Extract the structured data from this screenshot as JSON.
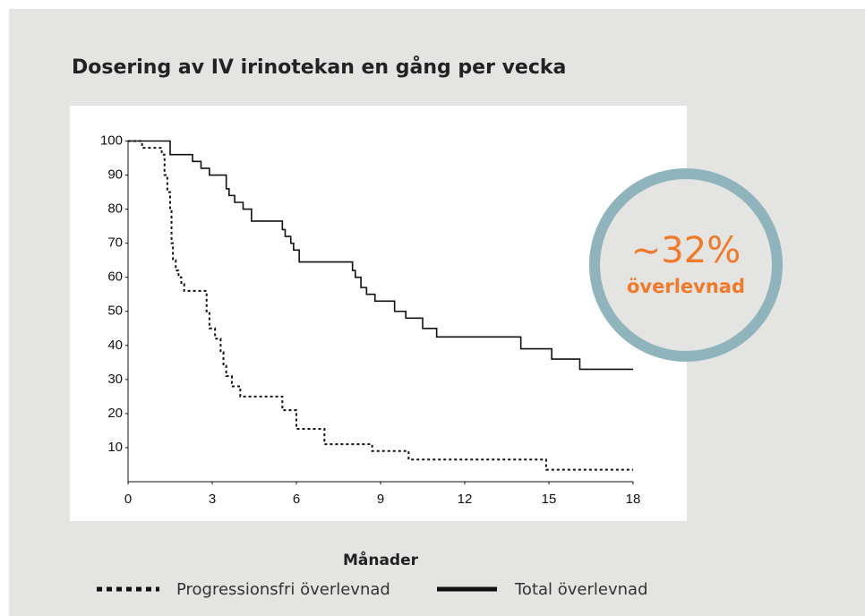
{
  "chart_data": {
    "type": "step",
    "title": "Dosering av IV irinotekan en gång per vecka",
    "xlabel": "Månader",
    "xlim": [
      0,
      18
    ],
    "ylim": [
      0,
      100
    ],
    "xticks": [
      0,
      3,
      6,
      9,
      12,
      15,
      18
    ],
    "yticks": [
      10,
      20,
      30,
      40,
      50,
      60,
      70,
      80,
      90,
      100
    ],
    "series": [
      {
        "name": "Progressionsfri överlevnad",
        "color": "#111111",
        "dash": "dotted",
        "x": [
          0,
          0.5,
          1.2,
          1.3,
          1.4,
          1.5,
          1.55,
          1.6,
          1.7,
          1.8,
          1.9,
          2.0,
          2.8,
          2.9,
          3.1,
          3.3,
          3.4,
          3.5,
          3.7,
          4.0,
          5.5,
          6.0,
          7.0,
          8.7,
          10.0,
          14.9,
          18
        ],
        "values": [
          100,
          98,
          96,
          90,
          85,
          80,
          70,
          65,
          62,
          60,
          58,
          56,
          50,
          45,
          42,
          38,
          34,
          31,
          28,
          25,
          21,
          15.5,
          11,
          9,
          6.5,
          3.5,
          3.5
        ]
      },
      {
        "name": "Total överlevnad",
        "color": "#111111",
        "dash": "solid",
        "x": [
          0,
          1.5,
          2.3,
          2.6,
          2.9,
          3.5,
          3.6,
          3.8,
          4.1,
          4.4,
          5.5,
          5.6,
          5.8,
          5.9,
          6.1,
          8.0,
          8.1,
          8.3,
          8.5,
          8.8,
          9.5,
          9.9,
          10.5,
          11.0,
          14.0,
          15.1,
          16.1,
          18
        ],
        "values": [
          100,
          96,
          94,
          92,
          90,
          86,
          84,
          82,
          80,
          76.5,
          74,
          72,
          70,
          68,
          64.5,
          62,
          60,
          57,
          55,
          53,
          50,
          48,
          45,
          42.5,
          39,
          36,
          33,
          33
        ]
      }
    ],
    "annotation": {
      "value": "~32%",
      "label": "överlevnad"
    }
  }
}
